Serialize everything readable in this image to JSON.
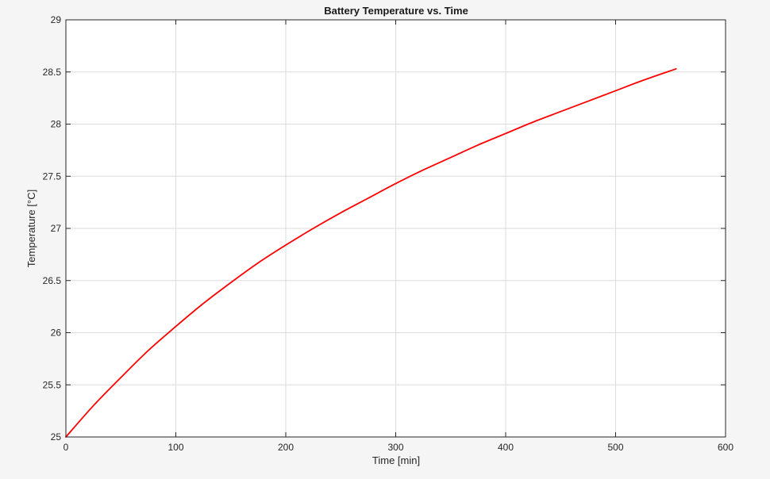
{
  "chart_data": {
    "type": "line",
    "title": "Battery Temperature vs. Time",
    "xlabel": "Time [min]",
    "ylabel": "Temperature [°C]",
    "xlim": [
      0,
      600
    ],
    "ylim": [
      25,
      29
    ],
    "xticks": [
      0,
      100,
      200,
      300,
      400,
      500,
      600
    ],
    "yticks": [
      25,
      25.5,
      26,
      26.5,
      27,
      27.5,
      28,
      28.5,
      29
    ],
    "xtick_labels": [
      "0",
      "100",
      "200",
      "300",
      "400",
      "500",
      "600"
    ],
    "ytick_labels": [
      "25",
      "25.5",
      "26",
      "26.5",
      "27",
      "27.5",
      "28",
      "28.5",
      "29"
    ],
    "grid": true,
    "series": [
      {
        "color": "#ff0000",
        "x": [
          0,
          25,
          50,
          75,
          100,
          125,
          150,
          175,
          200,
          225,
          250,
          275,
          300,
          325,
          350,
          375,
          400,
          425,
          450,
          475,
          500,
          525,
          555
        ],
        "y": [
          25.0,
          25.3,
          25.57,
          25.83,
          26.06,
          26.28,
          26.48,
          26.67,
          26.84,
          27.0,
          27.15,
          27.29,
          27.43,
          27.56,
          27.68,
          27.8,
          27.91,
          28.02,
          28.12,
          28.22,
          28.32,
          28.42,
          28.53
        ]
      }
    ]
  }
}
